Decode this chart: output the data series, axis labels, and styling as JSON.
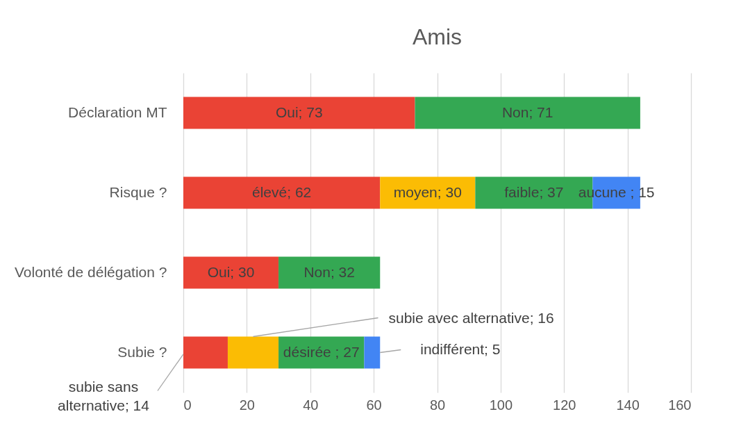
{
  "chart_data": {
    "type": "bar",
    "orientation": "horizontal",
    "stacked": true,
    "title": "Amis",
    "categories": [
      "Déclaration MT",
      "Risque ?",
      "Volonté de délégation ?",
      "Subie ?"
    ],
    "series": [
      {
        "color": "#ea4335",
        "values": [
          73,
          62,
          30,
          14
        ],
        "value_labels": [
          "Oui; 73",
          "élevé; 62",
          "Oui; 30",
          "subie sans alternative; 14"
        ]
      },
      {
        "color": "#fbbc04",
        "values": [
          null,
          30,
          null,
          16
        ],
        "value_labels": [
          null,
          "moyen; 30",
          null,
          "subie avec alternative; 16"
        ]
      },
      {
        "color": "#34a853",
        "values": [
          71,
          37,
          32,
          27
        ],
        "value_labels": [
          "Non; 71",
          "faible; 37",
          "Non; 32",
          "désirée ; 27"
        ]
      },
      {
        "color": "#4285f4",
        "values": [
          null,
          15,
          null,
          5
        ],
        "value_labels": [
          null,
          "aucune ; 15",
          null,
          "indifférent; 5"
        ]
      }
    ],
    "xlim": [
      0,
      160
    ],
    "xticks": [
      0,
      20,
      40,
      60,
      80,
      100,
      120,
      140,
      160
    ],
    "grid": "x",
    "legend": false
  }
}
